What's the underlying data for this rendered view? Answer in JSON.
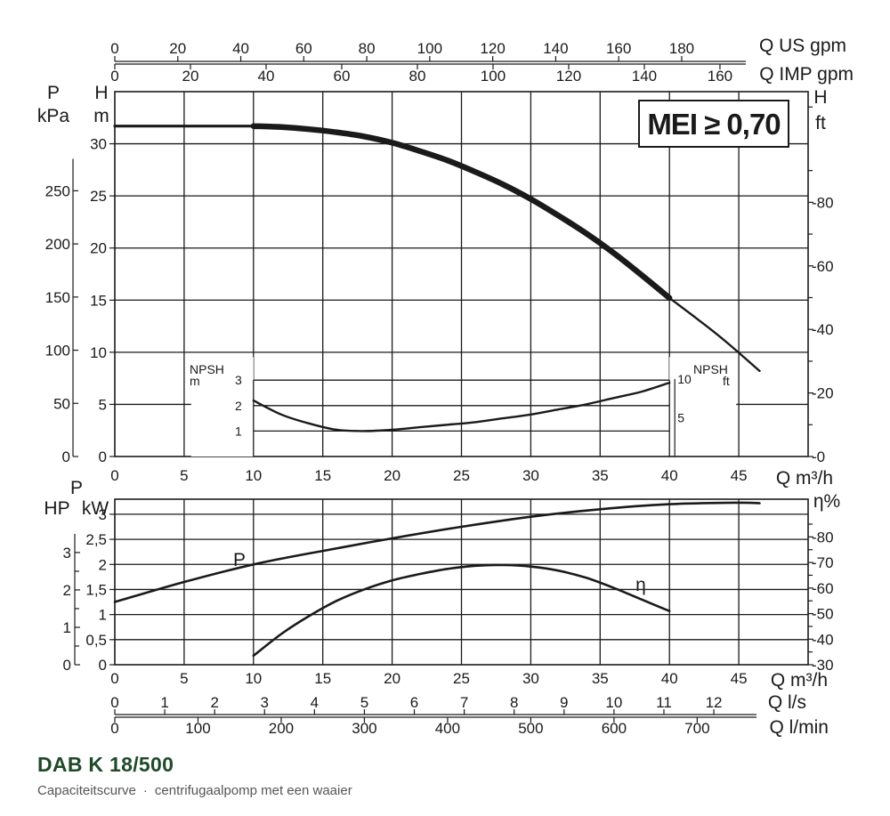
{
  "model": "DAB K 18/500",
  "subtitle_left": "Capaciteitscurve",
  "subtitle_sep": "·",
  "subtitle_right": "centrifugaalpomp met een waaier",
  "badge": "MEI ≥ 0,70",
  "chart_data": [
    {
      "type": "line",
      "name": "head",
      "x_label": "Q m³/h",
      "x_ticks": [
        0,
        5,
        10,
        15,
        20,
        25,
        30,
        35,
        40,
        45
      ],
      "xlim": [
        0,
        50
      ],
      "y_left_label_1": "P",
      "y_left_label_1u": "kPa",
      "y_left_label_2": "H",
      "y_left_label_2u": "m",
      "y_right_label": "H",
      "y_right_label_u": "ft",
      "ylim": [
        0,
        35
      ],
      "y_ticks_m": [
        0,
        5,
        10,
        15,
        20,
        25,
        30
      ],
      "y_ticks_kpa": [
        0,
        50,
        100,
        150,
        200,
        250
      ],
      "y_ticks_ft": [
        0,
        20,
        40,
        60,
        80
      ],
      "top_axis_1_label": "Q US gpm",
      "top_axis_1_ticks": [
        0,
        20,
        40,
        60,
        80,
        100,
        120,
        140,
        160,
        180
      ],
      "top_axis_2_label": "Q IMP gpm",
      "top_axis_2_ticks": [
        0,
        20,
        40,
        60,
        80,
        100,
        120,
        140,
        160
      ],
      "head_thick": {
        "x": [
          10,
          12,
          14,
          16,
          18,
          20,
          22,
          24,
          26,
          28,
          30,
          32,
          34,
          36,
          38,
          40
        ],
        "y": [
          31.7,
          31.6,
          31.4,
          31.1,
          30.7,
          30.1,
          29.3,
          28.4,
          27.3,
          26.1,
          24.7,
          23.1,
          21.4,
          19.5,
          17.4,
          15.2
        ]
      },
      "head_flat": {
        "x": [
          0,
          10
        ],
        "y": [
          31.7,
          31.7
        ]
      },
      "head_extension": {
        "x": [
          40,
          42,
          44,
          46.5
        ],
        "y": [
          15.2,
          13.2,
          11.1,
          8.2
        ]
      },
      "npsh": {
        "label": "NPSH",
        "label_m": "m",
        "label_ft": "ft",
        "y_ticks_m": [
          1,
          2,
          3
        ],
        "y_ticks_ft": [
          5,
          10
        ],
        "x": [
          10,
          12,
          14,
          16,
          18,
          20,
          22,
          24,
          26,
          28,
          30,
          32,
          34,
          36,
          38,
          40
        ],
        "y": [
          2.2,
          1.65,
          1.3,
          1.05,
          1.0,
          1.05,
          1.15,
          1.25,
          1.35,
          1.5,
          1.65,
          1.85,
          2.05,
          2.3,
          2.55,
          2.9
        ]
      }
    },
    {
      "type": "line",
      "name": "power-efficiency",
      "x_label": "Q m³/h",
      "x_ticks": [
        0,
        5,
        10,
        15,
        20,
        25,
        30,
        35,
        40,
        45
      ],
      "y_left_label_hp": "HP",
      "y_left_label_p": "P",
      "y_left_label_kw": "kW",
      "y_ticks_hp": [
        0,
        1,
        2,
        3
      ],
      "y_ticks_kw": [
        "0",
        "0,5",
        "1",
        "1,5",
        "2",
        "2,5",
        "3"
      ],
      "ylim_kw": [
        0,
        3.3
      ],
      "y_right_label": "η%",
      "y_ticks_eta": [
        30,
        40,
        50,
        60,
        70,
        80
      ],
      "power_label": "P",
      "eff_label": "η",
      "power": {
        "x": [
          0,
          5,
          10,
          15,
          20,
          25,
          30,
          35,
          40,
          45,
          46.5
        ],
        "y": [
          1.25,
          1.65,
          2.0,
          2.27,
          2.52,
          2.75,
          2.95,
          3.1,
          3.2,
          3.23,
          3.22
        ]
      },
      "efficiency": {
        "x": [
          10,
          12,
          14,
          16,
          18,
          20,
          22,
          24,
          26,
          28,
          30,
          32,
          34,
          36,
          38,
          40
        ],
        "y": [
          33.5,
          42,
          49,
          55,
          59.5,
          63,
          65.5,
          67.5,
          68.7,
          69,
          68.4,
          66.8,
          64,
          60,
          55.5,
          51
        ]
      }
    }
  ],
  "bottom_axes": {
    "ls_label": "Q l/s",
    "ls_ticks": [
      0,
      1,
      2,
      3,
      4,
      5,
      6,
      7,
      8,
      9,
      10,
      11,
      12
    ],
    "lmin_label": "Q l/min",
    "lmin_ticks": [
      0,
      100,
      200,
      300,
      400,
      500,
      600,
      700
    ]
  }
}
